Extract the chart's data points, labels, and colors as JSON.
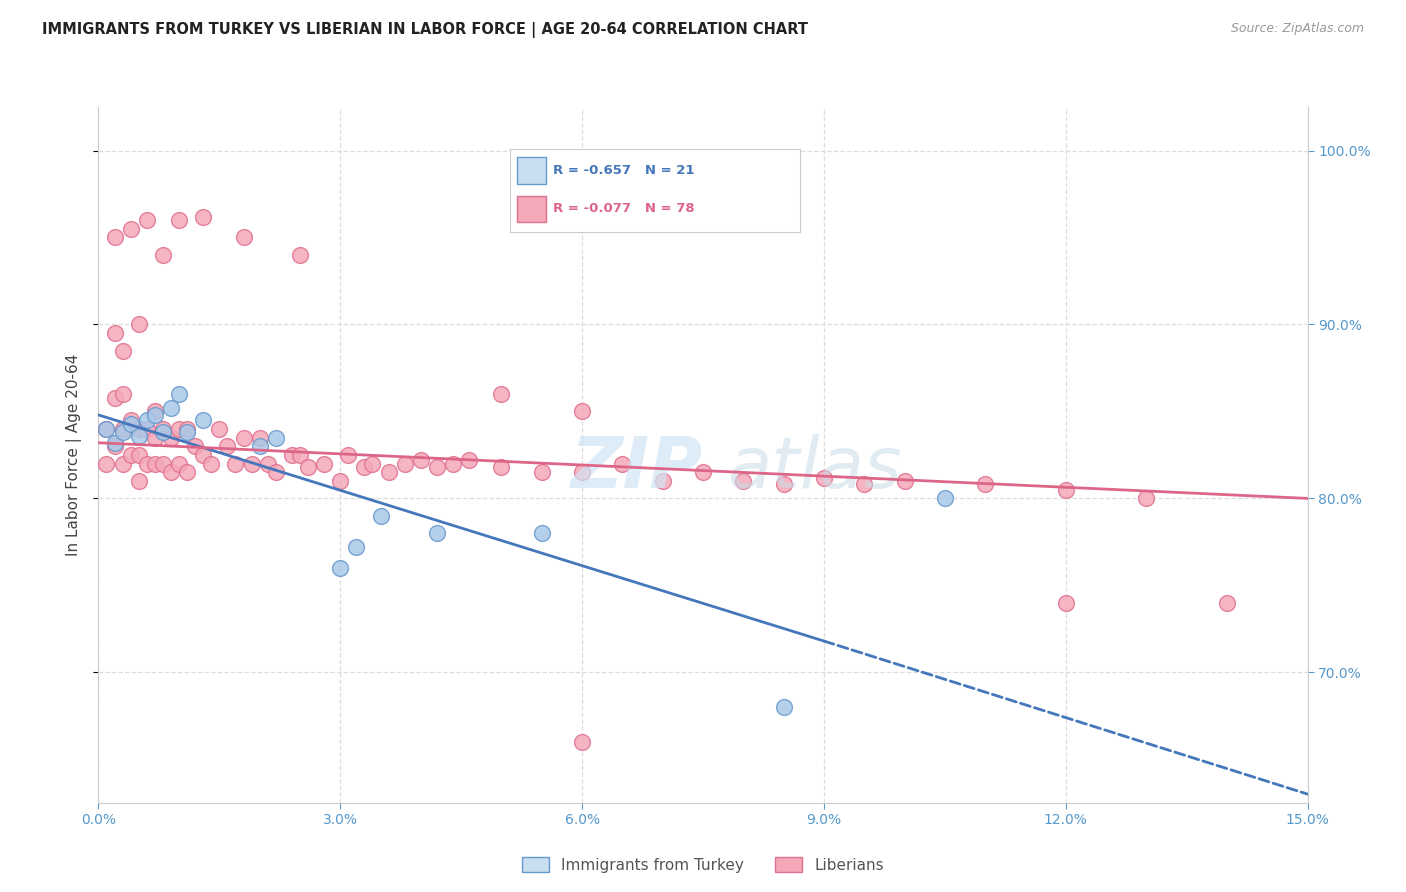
{
  "title": "IMMIGRANTS FROM TURKEY VS LIBERIAN IN LABOR FORCE | AGE 20-64 CORRELATION CHART",
  "source": "Source: ZipAtlas.com",
  "ylabel": "In Labor Force | Age 20-64",
  "xlim": [
    0.0,
    0.15
  ],
  "ylim": [
    0.625,
    1.025
  ],
  "xticks": [
    0.0,
    0.03,
    0.06,
    0.09,
    0.12,
    0.15
  ],
  "xticklabels": [
    "0.0%",
    "3.0%",
    "6.0%",
    "9.0%",
    "12.0%",
    "15.0%"
  ],
  "yticks": [
    0.7,
    0.8,
    0.9,
    1.0
  ],
  "yticklabels": [
    "70.0%",
    "80.0%",
    "90.0%",
    "100.0%"
  ],
  "turkey_color": "#a8c8e8",
  "liberia_color": "#f4a8b8",
  "turkey_edge_color": "#6699cc",
  "liberia_edge_color": "#e07090",
  "turkey_line_color": "#4477bb",
  "liberia_line_color": "#dd6688",
  "tick_color": "#5599cc",
  "grid_color": "#dddddd",
  "title_color": "#222222",
  "source_color": "#999999",
  "legend_border_color": "#cccccc",
  "turkey_legend_fill": "#c8dff0",
  "liberia_legend_fill": "#f4a8b8",
  "turkey_points_x": [
    0.001,
    0.002,
    0.003,
    0.004,
    0.005,
    0.006,
    0.007,
    0.008,
    0.009,
    0.01,
    0.011,
    0.013,
    0.02,
    0.022,
    0.03,
    0.032,
    0.035,
    0.042,
    0.055,
    0.085,
    0.105
  ],
  "turkey_points_y": [
    0.84,
    0.832,
    0.838,
    0.843,
    0.836,
    0.845,
    0.848,
    0.838,
    0.852,
    0.86,
    0.838,
    0.845,
    0.83,
    0.835,
    0.76,
    0.772,
    0.79,
    0.78,
    0.78,
    0.68,
    0.8
  ],
  "liberia_points_x": [
    0.001,
    0.001,
    0.002,
    0.002,
    0.003,
    0.003,
    0.003,
    0.004,
    0.004,
    0.005,
    0.005,
    0.005,
    0.006,
    0.006,
    0.007,
    0.007,
    0.007,
    0.008,
    0.008,
    0.009,
    0.009,
    0.01,
    0.01,
    0.011,
    0.011,
    0.012,
    0.013,
    0.014,
    0.015,
    0.016,
    0.017,
    0.018,
    0.019,
    0.02,
    0.021,
    0.022,
    0.024,
    0.025,
    0.026,
    0.028,
    0.03,
    0.031,
    0.033,
    0.034,
    0.036,
    0.038,
    0.04,
    0.042,
    0.044,
    0.046,
    0.05,
    0.055,
    0.06,
    0.065,
    0.07,
    0.075,
    0.08,
    0.085,
    0.09,
    0.095,
    0.1,
    0.11,
    0.12,
    0.13,
    0.14,
    0.002,
    0.004,
    0.006,
    0.008,
    0.01,
    0.013,
    0.018,
    0.025,
    0.05,
    0.06,
    0.002,
    0.003,
    0.005,
    0.12,
    0.06
  ],
  "liberia_points_y": [
    0.84,
    0.82,
    0.858,
    0.83,
    0.86,
    0.84,
    0.82,
    0.845,
    0.825,
    0.84,
    0.825,
    0.81,
    0.84,
    0.82,
    0.85,
    0.835,
    0.82,
    0.84,
    0.82,
    0.835,
    0.815,
    0.84,
    0.82,
    0.84,
    0.815,
    0.83,
    0.825,
    0.82,
    0.84,
    0.83,
    0.82,
    0.835,
    0.82,
    0.835,
    0.82,
    0.815,
    0.825,
    0.825,
    0.818,
    0.82,
    0.81,
    0.825,
    0.818,
    0.82,
    0.815,
    0.82,
    0.822,
    0.818,
    0.82,
    0.822,
    0.818,
    0.815,
    0.815,
    0.82,
    0.81,
    0.815,
    0.81,
    0.808,
    0.812,
    0.808,
    0.81,
    0.808,
    0.805,
    0.8,
    0.74,
    0.95,
    0.955,
    0.96,
    0.94,
    0.96,
    0.962,
    0.95,
    0.94,
    0.86,
    0.85,
    0.895,
    0.885,
    0.9,
    0.74,
    0.66
  ],
  "turkey_trend_x0": 0.0,
  "turkey_trend_y0": 0.848,
  "turkey_trend_x1_solid": 0.09,
  "turkey_trend_y1_solid": 0.718,
  "turkey_trend_x1_dashed": 0.15,
  "turkey_trend_y1_dashed": 0.63,
  "liberia_trend_x0": 0.0,
  "liberia_trend_y0": 0.832,
  "liberia_trend_x1": 0.15,
  "liberia_trend_y1": 0.8
}
